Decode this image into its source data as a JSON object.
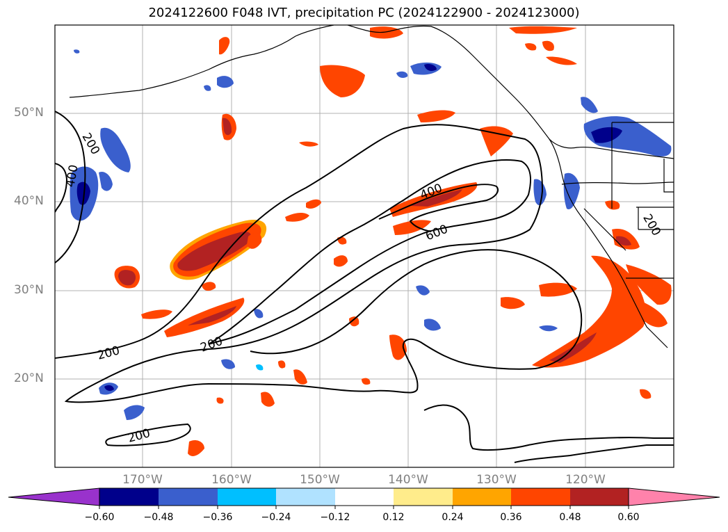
{
  "title": "2024122600 F048 IVT, precipitation PC (2024122900 - 2024123000)",
  "lat_labels": [
    "50°N",
    "40°N",
    "30°N",
    "20°N"
  ],
  "lon_labels": [
    "170°W",
    "160°W",
    "150°W",
    "140°W",
    "130°W",
    "120°W"
  ],
  "contour_labels": [
    "200",
    "400",
    "200",
    "400",
    "600",
    "200",
    "200",
    "200",
    "200"
  ],
  "colorbar": {
    "colors": [
      "#9932cc",
      "#00008b",
      "#3a5fcd",
      "#00bfff",
      "#b0e2ff",
      "#ffffff",
      "#ffec8b",
      "#ffa500",
      "#ff4500",
      "#b22222",
      "#ff82ab"
    ],
    "tick_labels": [
      "−0.60",
      "−0.48",
      "−0.36",
      "−0.24",
      "−0.12",
      "0.12",
      "0.24",
      "0.36",
      "0.48",
      "0.60"
    ]
  }
}
